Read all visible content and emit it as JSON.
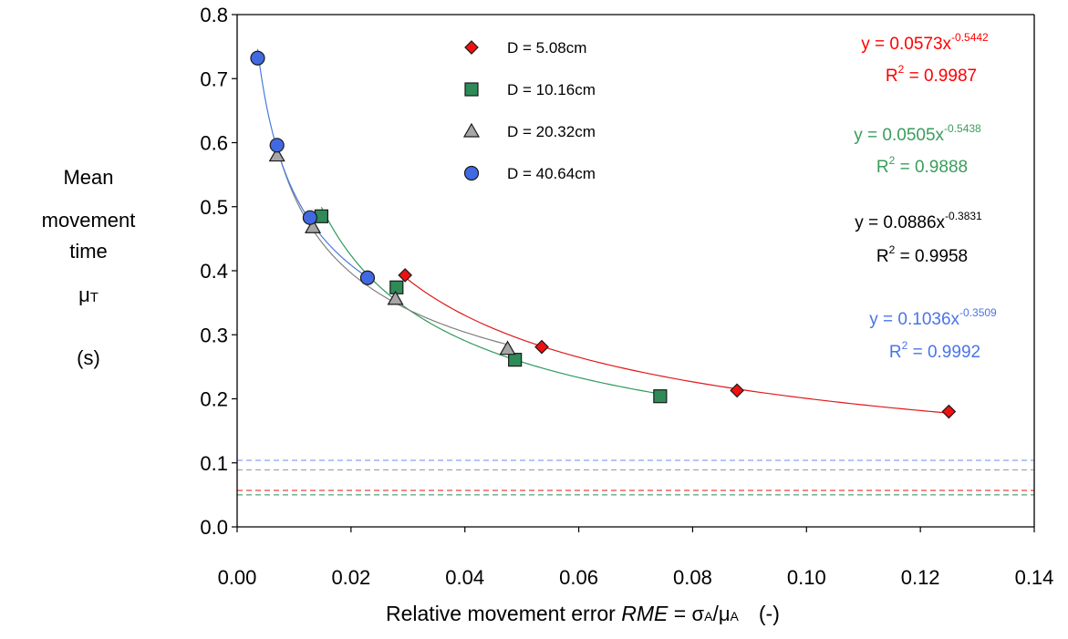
{
  "chart_data": {
    "type": "scatter",
    "x_axis": {
      "label_prefix": "Relative movement error ",
      "label_var": "RME",
      "label_eq": " = ",
      "label_sigma": "σ",
      "label_sigma_sub": "A",
      "label_slash": "/",
      "label_mu": "μ",
      "label_mu_sub": "A",
      "label_unit": "(-)",
      "range": [
        0,
        0.14
      ],
      "ticks": [
        "0.00",
        "0.02",
        "0.04",
        "0.06",
        "0.08",
        "0.10",
        "0.12",
        "0.14"
      ]
    },
    "y_axis": {
      "label_lines": [
        "Mean",
        "movement",
        "time"
      ],
      "label_symbol": "μ",
      "label_symbol_sub": "T",
      "label_unit": "(s)",
      "range": [
        0,
        0.8
      ],
      "ticks": [
        "0.0",
        "0.1",
        "0.2",
        "0.3",
        "0.4",
        "0.5",
        "0.6",
        "0.7",
        "0.8"
      ]
    },
    "grid": false,
    "legend_position": "top-center",
    "series": [
      {
        "name": "D = 5.08cm",
        "marker": "diamond",
        "color": "#ee1111",
        "curve_color": "#e01818",
        "x": [
          0.0295,
          0.0535,
          0.0878,
          0.125
        ],
        "y": [
          0.393,
          0.281,
          0.213,
          0.18
        ],
        "fit": {
          "a": 0.0573,
          "b": -0.5442,
          "x_from": 0.0295,
          "x_to": 0.125
        },
        "equation_main": "y = 0.0573x",
        "equation_exp": "-0.5442",
        "r2_main": "R",
        "r2_exp": "2",
        "r2_value": " = 0.9987",
        "asymptote": 0.057,
        "asymptote_color": "#ee1111"
      },
      {
        "name": "D = 10.16cm",
        "marker": "square",
        "color": "#2e8b57",
        "curve_color": "#2e9a5a",
        "x": [
          0.0148,
          0.028,
          0.0488,
          0.0743
        ],
        "y": [
          0.485,
          0.374,
          0.261,
          0.204
        ],
        "fit": {
          "a": 0.0505,
          "b": -0.5438,
          "x_from": 0.0148,
          "x_to": 0.0743
        },
        "equation_main": "y = 0.0505x",
        "equation_exp": "-0.5438",
        "r2_main": "R",
        "r2_exp": "2",
        "r2_value": " = 0.9888",
        "asymptote": 0.05,
        "asymptote_color": "#2e8b57"
      },
      {
        "name": "D = 20.32cm",
        "marker": "triangle",
        "color": "#a6a6a6",
        "curve_color": "#808080",
        "x": [
          0.007,
          0.0133,
          0.0278,
          0.0475
        ],
        "y": [
          0.58,
          0.468,
          0.356,
          0.278
        ],
        "fit": {
          "a": 0.0886,
          "b": -0.3831,
          "x_from": 0.007,
          "x_to": 0.0475
        },
        "equation_main": "y = 0.0886x",
        "equation_exp": "-0.3831",
        "r2_main": "R",
        "r2_exp": "2",
        "r2_value": " = 0.9958",
        "asymptote": 0.089,
        "asymptote_color": "#999999"
      },
      {
        "name": "D = 40.64cm",
        "marker": "circle",
        "color": "#4169e1",
        "curve_color": "#4a7ae0",
        "x": [
          0.0036,
          0.007,
          0.0128,
          0.0229
        ],
        "y": [
          0.732,
          0.596,
          0.483,
          0.389
        ],
        "fit": {
          "a": 0.1036,
          "b": -0.3509,
          "x_from": 0.0036,
          "x_to": 0.0229
        },
        "equation_main": "y = 0.1036x",
        "equation_exp": "-0.3509",
        "r2_main": "R",
        "r2_exp": "2",
        "r2_value": " = 0.9992",
        "asymptote": 0.104,
        "asymptote_color": "#6a8ef0"
      }
    ]
  },
  "colors": {
    "eq_red": "#ff0000",
    "eq_green": "#3a9d5d",
    "eq_black": "#000000",
    "eq_blue": "#4a74e8"
  }
}
